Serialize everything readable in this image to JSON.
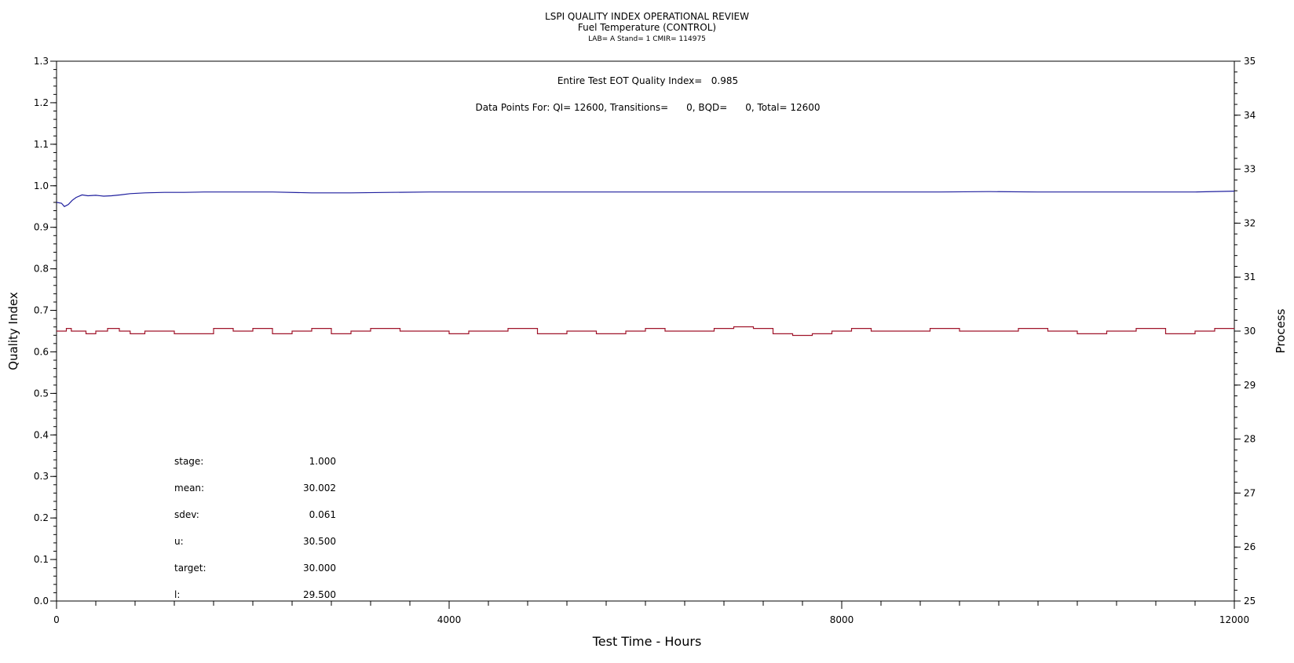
{
  "titles": {
    "line1": "LSPI QUALITY INDEX OPERATIONAL REVIEW",
    "line2": "Fuel Temperature (CONTROL)",
    "line3": "LAB= A Stand= 1 CMIR= 114975"
  },
  "annotations": {
    "quality_index": "Entire Test EOT Quality Index=   0.985",
    "data_points": "Data Points For: QI= 12600, Transitions=      0, BQD=      0, Total= 12600"
  },
  "stats": [
    {
      "label": "stage:",
      "value": "1.000"
    },
    {
      "label": "mean:",
      "value": "30.002"
    },
    {
      "label": "sdev:",
      "value": "0.061"
    },
    {
      "label": "u:",
      "value": "30.500"
    },
    {
      "label": "target:",
      "value": "30.000"
    },
    {
      "label": "l:",
      "value": "29.500"
    }
  ],
  "chart_data": {
    "type": "line",
    "title": "LSPI QUALITY INDEX OPERATIONAL REVIEW",
    "subtitle": "Fuel Temperature (CONTROL)",
    "xlabel": "Test Time - Hours",
    "ylabel": "Quality Index",
    "y2label": "Process",
    "xlim": [
      0,
      12000
    ],
    "ylim": [
      0.0,
      1.3
    ],
    "y2lim": [
      25,
      35
    ],
    "xticks": [
      "0",
      "4000",
      "8000",
      "12000"
    ],
    "yticks": [
      "0.0",
      "0.1",
      "0.2",
      "0.3",
      "0.4",
      "0.5",
      "0.6",
      "0.7",
      "0.8",
      "0.9",
      "1.0",
      "1.1",
      "1.2",
      "1.3"
    ],
    "y2ticks": [
      "25",
      "26",
      "27",
      "28",
      "29",
      "30",
      "31",
      "32",
      "33",
      "34",
      "35"
    ],
    "grid": false,
    "series": [
      {
        "axis": "left",
        "color": "#1f1f9e",
        "x": [
          0,
          50,
          80,
          120,
          160,
          200,
          260,
          320,
          400,
          480,
          560,
          650,
          750,
          900,
          1100,
          1300,
          1500,
          1800,
          2200,
          2600,
          3000,
          3400,
          3800,
          4200,
          4800,
          5400,
          6000,
          7000,
          8000,
          9000,
          9500,
          10000,
          11000,
          11600,
          12000
        ],
        "values": [
          0.96,
          0.958,
          0.95,
          0.955,
          0.965,
          0.972,
          0.978,
          0.976,
          0.977,
          0.975,
          0.976,
          0.978,
          0.981,
          0.983,
          0.984,
          0.984,
          0.985,
          0.985,
          0.985,
          0.983,
          0.983,
          0.984,
          0.985,
          0.985,
          0.985,
          0.985,
          0.985,
          0.985,
          0.985,
          0.985,
          0.986,
          0.985,
          0.985,
          0.985,
          0.987
        ]
      },
      {
        "axis": "right",
        "color": "#a0142a",
        "x": [
          0,
          100,
          150,
          300,
          400,
          520,
          640,
          750,
          900,
          1050,
          1200,
          1400,
          1600,
          1800,
          2000,
          2200,
          2400,
          2600,
          2800,
          3000,
          3200,
          3500,
          3800,
          4000,
          4200,
          4600,
          4900,
          5200,
          5500,
          5800,
          6000,
          6200,
          6500,
          6700,
          6900,
          7100,
          7300,
          7500,
          7700,
          7900,
          8100,
          8300,
          8600,
          8900,
          9200,
          9500,
          9800,
          10100,
          10400,
          10700,
          11000,
          11300,
          11600,
          11800,
          12000
        ],
        "values": [
          30.0,
          30.05,
          30.0,
          29.95,
          30.0,
          30.05,
          30.0,
          29.95,
          30.0,
          30.0,
          29.95,
          29.95,
          30.05,
          30.0,
          30.05,
          29.95,
          30.0,
          30.05,
          29.95,
          30.0,
          30.05,
          30.0,
          30.0,
          29.95,
          30.0,
          30.05,
          29.95,
          30.0,
          29.95,
          30.0,
          30.05,
          30.0,
          30.0,
          30.05,
          30.08,
          30.05,
          29.95,
          29.92,
          29.95,
          30.0,
          30.05,
          30.0,
          30.0,
          30.05,
          30.0,
          30.0,
          30.05,
          30.0,
          29.95,
          30.0,
          30.05,
          29.95,
          30.0,
          30.05,
          30.05
        ]
      }
    ]
  }
}
